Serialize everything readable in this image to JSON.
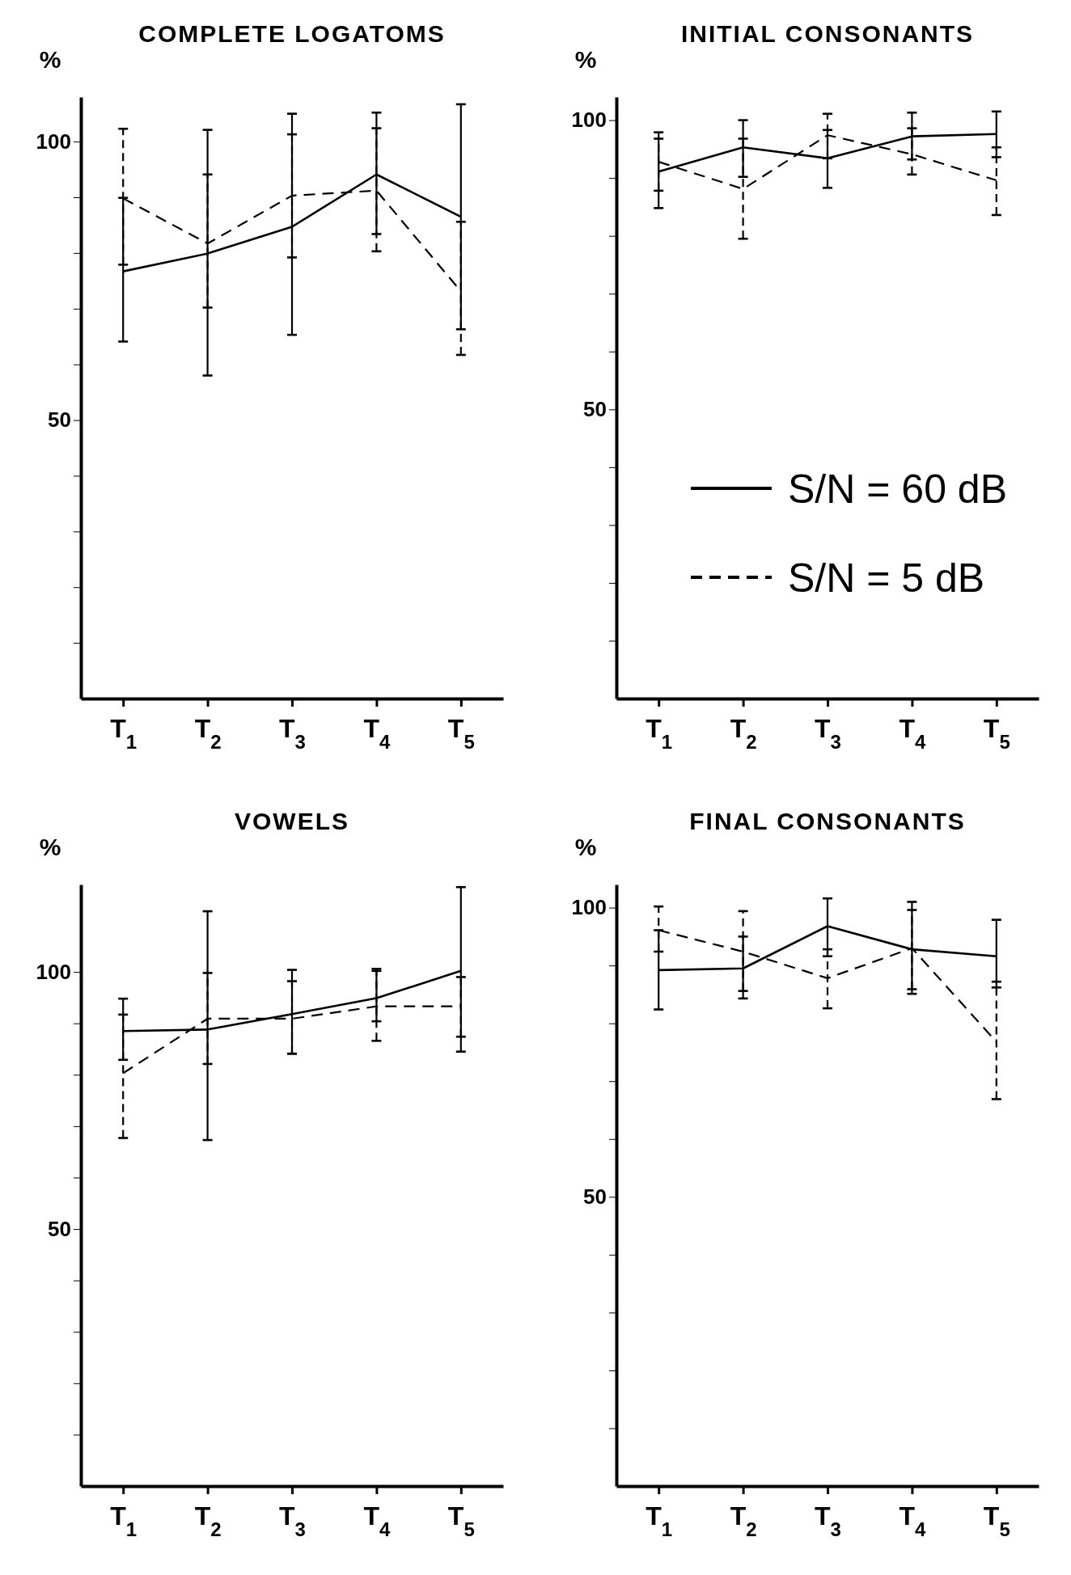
{
  "chart_data": [
    {
      "type": "line",
      "title": "COMPLETE LOGATOMS",
      "ylabel": "%",
      "categories": [
        "T$_{1}$",
        "T$_{2}$",
        "T$_{3}$",
        "T$_{4}$",
        "T$_{5}$"
      ],
      "ylim": [
        0,
        108
      ],
      "yticks": [
        {
          "value": 10,
          "label": null
        },
        {
          "value": 20,
          "label": null
        },
        {
          "value": 30,
          "label": null
        },
        {
          "value": 40,
          "label": null
        },
        {
          "value": 50,
          "label": "50"
        },
        {
          "value": 60,
          "label": null
        },
        {
          "value": 70,
          "label": null
        },
        {
          "value": 80,
          "label": null
        },
        {
          "value": 90,
          "label": null
        },
        {
          "value": 100,
          "label": "100"
        }
      ],
      "legend": false,
      "series": [
        {
          "color": "#000000",
          "line_style": "solid",
          "values": [
            76.7,
            79.9,
            84.7,
            94.1,
            86.5
          ],
          "errors": [
            [
              64.1,
              89.9
            ],
            [
              58.0,
              102.1
            ],
            [
              65.3,
              105.0
            ],
            [
              83.4,
              105.2
            ],
            [
              66.3,
              106.7
            ]
          ]
        },
        {
          "color": "#000000",
          "line_style": "dashed",
          "values": [
            89.8,
            81.7,
            90.3,
            91.2,
            73.1
          ],
          "errors": [
            [
              77.9,
              102.3
            ],
            [
              70.2,
              94.1
            ],
            [
              79.2,
              101.3
            ],
            [
              80.3,
              102.4
            ],
            [
              61.7,
              85.6
            ]
          ]
        }
      ]
    },
    {
      "type": "line",
      "title": "INITIAL CONSONANTS",
      "ylabel": "%",
      "categories": [
        "T$_{1}$",
        "T$_{2}$",
        "T$_{3}$",
        "T$_{4}$",
        "T$_{5}$"
      ],
      "ylim": [
        0,
        104
      ],
      "yticks": [
        {
          "value": 10,
          "label": null
        },
        {
          "value": 20,
          "label": null
        },
        {
          "value": 30,
          "label": null
        },
        {
          "value": 40,
          "label": null
        },
        {
          "value": 50,
          "label": "50"
        },
        {
          "value": 60,
          "label": null
        },
        {
          "value": 70,
          "label": null
        },
        {
          "value": 80,
          "label": null
        },
        {
          "value": 90,
          "label": null
        },
        {
          "value": 100,
          "label": "100"
        }
      ],
      "legend": "bottom right",
      "series": [
        {
          "name": "S/N = 60 dB",
          "color": "#000000",
          "line_style": "solid",
          "values": [
            91.1,
            95.3,
            93.4,
            97.2,
            97.6
          ],
          "errors": [
            [
              84.8,
              96.8
            ],
            [
              90.2,
              100.0
            ],
            [
              88.3,
              98.3
            ],
            [
              93.2,
              101.3
            ],
            [
              93.6,
              101.5
            ]
          ]
        },
        {
          "name": "S/N = 5 dB",
          "color": "#000000",
          "line_style": "dashed",
          "values": [
            92.8,
            88.1,
            97.4,
            94.1,
            89.6
          ],
          "errors": [
            [
              87.8,
              97.9
            ],
            [
              79.5,
              96.8
            ],
            [
              93.4,
              101.1
            ],
            [
              90.6,
              98.6
            ],
            [
              83.6,
              95.3
            ]
          ]
        }
      ]
    },
    {
      "type": "line",
      "title": "VOWELS",
      "ylabel": "%",
      "categories": [
        "T$_{1}$",
        "T$_{2}$",
        "T$_{3}$",
        "T$_{4}$",
        "T$_{5}$"
      ],
      "ylim": [
        0,
        117
      ],
      "yticks": [
        {
          "value": 10,
          "label": null
        },
        {
          "value": 20,
          "label": null
        },
        {
          "value": 30,
          "label": null
        },
        {
          "value": 40,
          "label": null
        },
        {
          "value": 50,
          "label": "50"
        },
        {
          "value": 60,
          "label": null
        },
        {
          "value": 70,
          "label": null
        },
        {
          "value": 80,
          "label": null
        },
        {
          "value": 90,
          "label": null
        },
        {
          "value": 100,
          "label": "100"
        }
      ],
      "legend": false,
      "series": [
        {
          "color": "#000000",
          "line_style": "solid",
          "values": [
            88.5,
            88.8,
            91.8,
            94.9,
            100.2
          ],
          "errors": [
            [
              82.9,
              94.8
            ],
            [
              67.3,
              111.8
            ],
            [
              84.1,
              100.4
            ],
            [
              90.4,
              100.6
            ],
            [
              84.5,
              116.5
            ]
          ]
        },
        {
          "color": "#000000",
          "line_style": "dashed",
          "values": [
            80.3,
            90.9,
            90.9,
            93.3,
            93.3
          ],
          "errors": [
            [
              67.7,
              91.7
            ],
            [
              82.1,
              99.8
            ],
            [
              84.1,
              98.2
            ],
            [
              86.6,
              100.2
            ],
            [
              87.4,
              99.0
            ]
          ]
        }
      ]
    },
    {
      "type": "line",
      "title": "FINAL CONSONANTS",
      "ylabel": "%",
      "categories": [
        "T$_{1}$",
        "T$_{2}$",
        "T$_{3}$",
        "T$_{4}$",
        "T$_{5}$"
      ],
      "ylim": [
        0,
        104
      ],
      "yticks": [
        {
          "value": 10,
          "label": null
        },
        {
          "value": 20,
          "label": null
        },
        {
          "value": 30,
          "label": null
        },
        {
          "value": 40,
          "label": null
        },
        {
          "value": 50,
          "label": "50"
        },
        {
          "value": 60,
          "label": null
        },
        {
          "value": 70,
          "label": null
        },
        {
          "value": 80,
          "label": null
        },
        {
          "value": 90,
          "label": null
        },
        {
          "value": 100,
          "label": "100"
        }
      ],
      "legend": false,
      "series": [
        {
          "color": "#000000",
          "line_style": "solid",
          "values": [
            89.2,
            89.5,
            96.8,
            92.8,
            91.6
          ],
          "errors": [
            [
              82.4,
              96.1
            ],
            [
              84.3,
              95.0
            ],
            [
              91.6,
              101.6
            ],
            [
              85.1,
              101.0
            ],
            [
              86.2,
              97.9
            ]
          ]
        },
        {
          "color": "#000000",
          "line_style": "dashed",
          "values": [
            96.1,
            92.4,
            87.8,
            93.0,
            76.8
          ],
          "errors": [
            [
              92.4,
              100.2
            ],
            [
              85.6,
              99.4
            ],
            [
              82.6,
              92.8
            ],
            [
              85.9,
              99.6
            ],
            [
              66.9,
              87.2
            ]
          ]
        }
      ]
    }
  ]
}
